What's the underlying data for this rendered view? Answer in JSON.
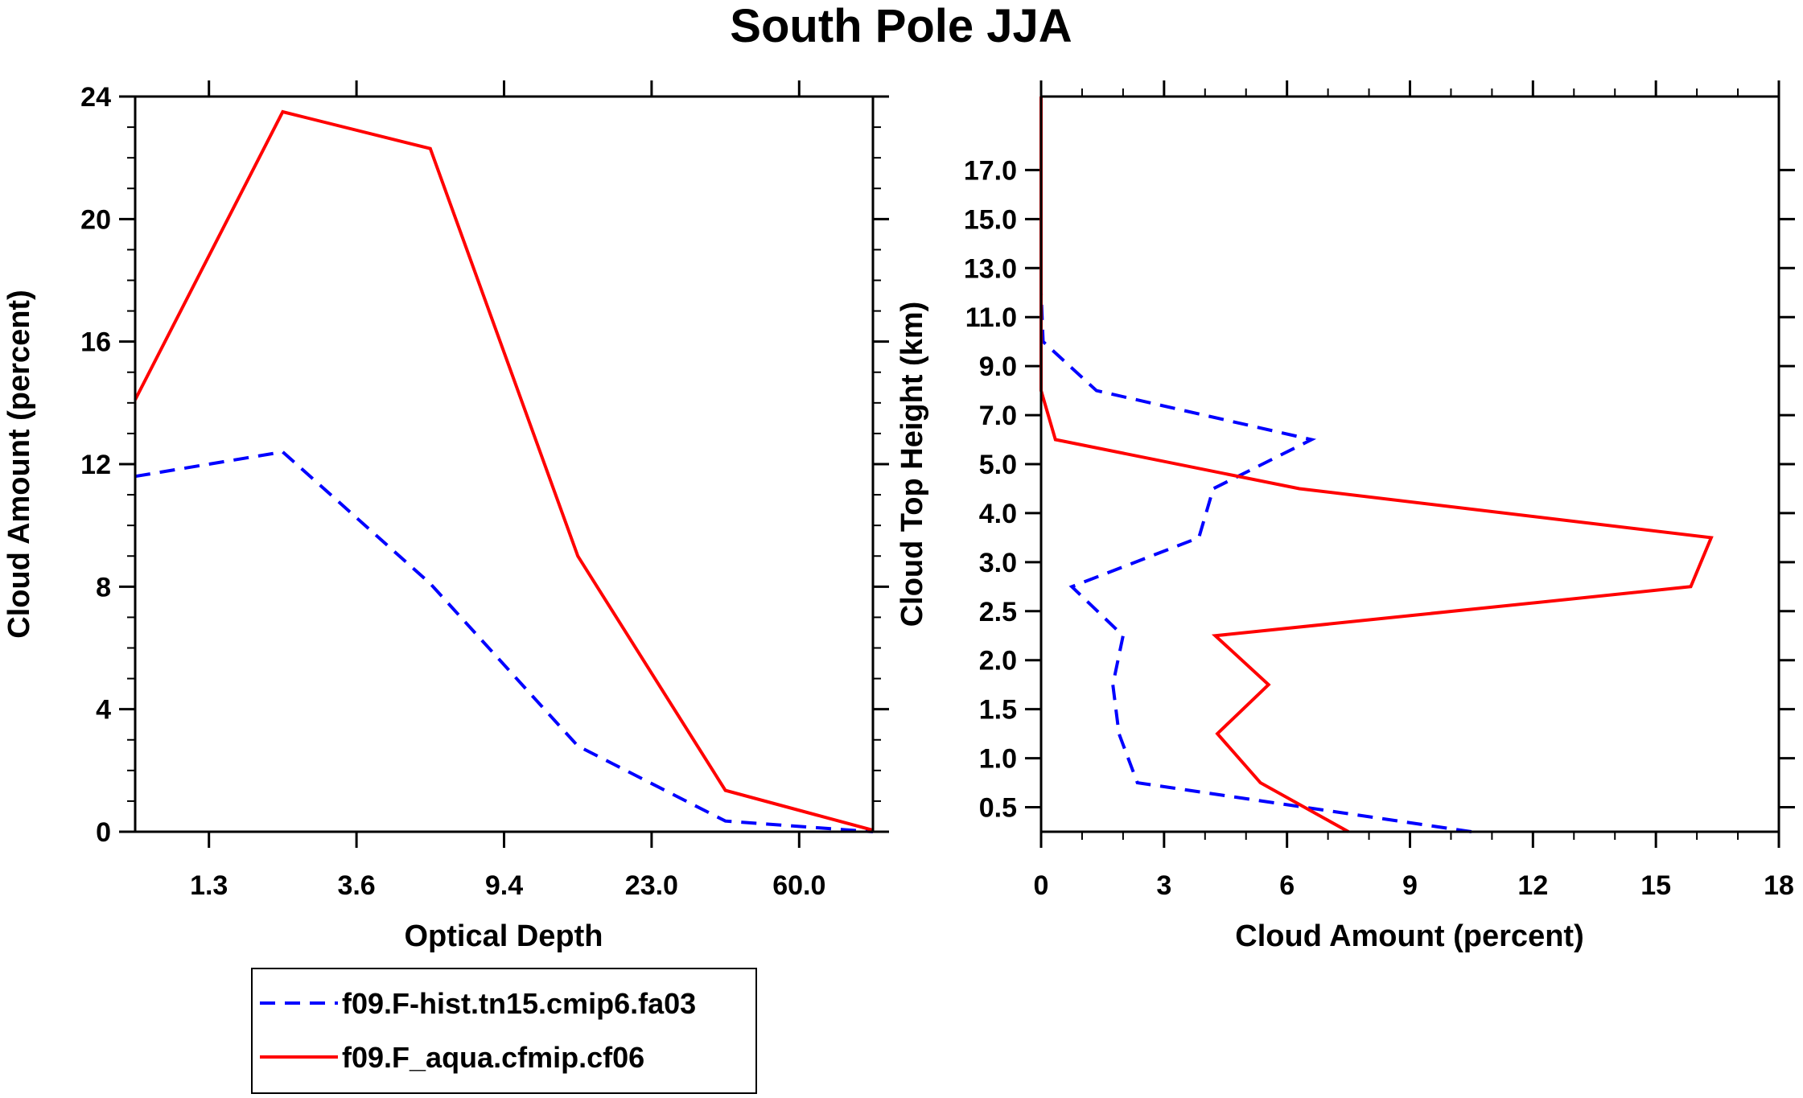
{
  "title": "South Pole JJA",
  "legend": {
    "entries": [
      {
        "label": "f09.F-hist.tn15.cmip6.fa03",
        "color": "#0000ff",
        "style": "dashed"
      },
      {
        "label": "f09.F_aqua.cfmip.cf06",
        "color": "#ff0000",
        "style": "solid"
      }
    ]
  },
  "chart_data": [
    {
      "type": "line",
      "xlabel": "Optical Depth",
      "ylabel": "Cloud Amount (percent)",
      "x_ticks": [
        "1.3",
        "3.6",
        "9.4",
        "23.0",
        "60.0"
      ],
      "x_index": [
        0,
        1,
        2,
        3,
        4,
        5
      ],
      "xlim": [
        0,
        5
      ],
      "y_ticks": [
        "0",
        "4",
        "8",
        "12",
        "16",
        "20",
        "24"
      ],
      "ylim": [
        0,
        24
      ],
      "series": [
        {
          "name": "f09.F-hist.tn15.cmip6.fa03",
          "color": "#0000ff",
          "dash": true,
          "values": [
            11.6,
            12.4,
            8.1,
            2.8,
            0.35,
            0.0
          ]
        },
        {
          "name": "f09.F_aqua.cfmip.cf06",
          "color": "#ff0000",
          "dash": false,
          "values": [
            14.1,
            23.5,
            22.3,
            9.0,
            1.35,
            0.05
          ]
        }
      ]
    },
    {
      "type": "line",
      "orientation": "vertical",
      "xlabel": "Cloud Amount (percent)",
      "ylabel": "Cloud Top Height (km)",
      "x_ticks": [
        "0",
        "3",
        "6",
        "9",
        "12",
        "15",
        "18"
      ],
      "xlim": [
        0,
        18
      ],
      "y_ticks": [
        "0.5",
        "1.0",
        "1.5",
        "2.0",
        "2.5",
        "3.0",
        "4.0",
        "5.0",
        "7.0",
        "9.0",
        "11.0",
        "13.0",
        "15.0",
        "17.0"
      ],
      "y_index": [
        0,
        1,
        2,
        3,
        4,
        5,
        6,
        7,
        8,
        9,
        10,
        11,
        12,
        13,
        14,
        15
      ],
      "series": [
        {
          "name": "f09.F-hist.tn15.cmip6.fa03",
          "color": "#0000ff",
          "dash": true,
          "values": [
            10.5,
            2.35,
            1.9,
            1.75,
            2.0,
            0.75,
            3.85,
            4.2,
            6.6,
            1.35,
            0.05,
            0.0,
            0.0,
            0.0,
            0.0,
            0.0
          ]
        },
        {
          "name": "f09.F_aqua.cfmip.cf06",
          "color": "#ff0000",
          "dash": false,
          "values": [
            7.5,
            5.35,
            4.3,
            5.55,
            4.25,
            15.85,
            16.35,
            6.3,
            0.35,
            0.0,
            0.0,
            0.0,
            0.0,
            0.0,
            0.0,
            0.0
          ]
        }
      ]
    }
  ]
}
